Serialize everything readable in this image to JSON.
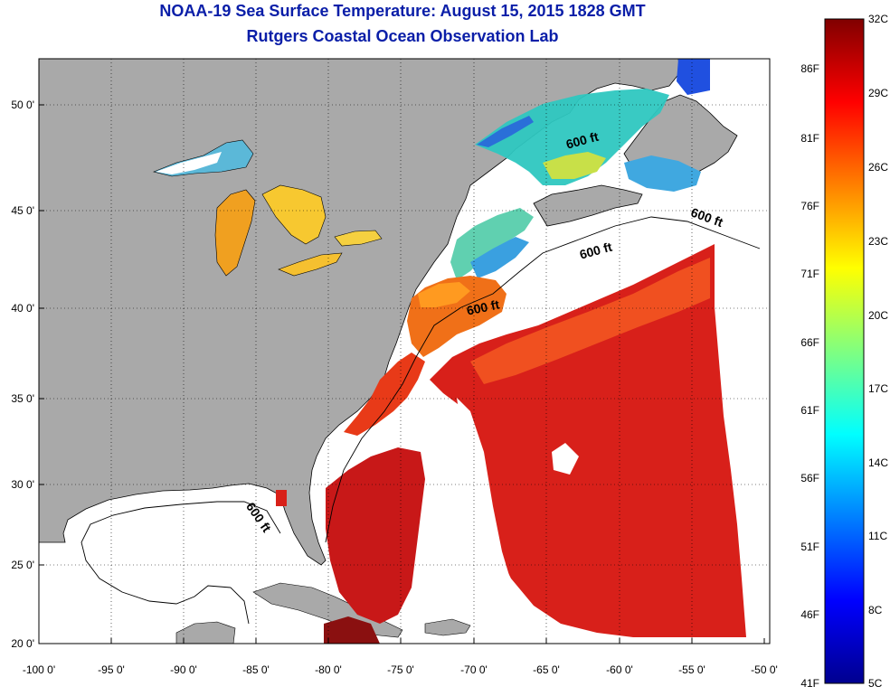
{
  "title": "NOAA-19 Sea Surface Temperature:  August 15, 2015 1828 GMT",
  "subtitle": "Rutgers Coastal Ocean Observation Lab",
  "map": {
    "lon_ticks": [
      "-100 0'",
      "-95 0'",
      "-90 0'",
      "-85 0'",
      "-80 0'",
      "-75 0'",
      "-70 0'",
      "-65 0'",
      "-60 0'",
      "-55 0'",
      "-50 0'"
    ],
    "lat_ticks": [
      "50 0'",
      "45 0'",
      "40 0'",
      "35 0'",
      "30 0'",
      "25 0'",
      "20 0'"
    ],
    "contour_label": "600 ft",
    "colors": {
      "land": "#a9a9a9",
      "no_data": "#ffffff"
    }
  },
  "colorbar": {
    "celsius_labels": [
      "32C",
      "29C",
      "26C",
      "23C",
      "20C",
      "17C",
      "14C",
      "11C",
      "8C",
      "5C"
    ],
    "fahrenheit_labels": [
      "86F",
      "81F",
      "76F",
      "71F",
      "66F",
      "61F",
      "56F",
      "51F",
      "46F",
      "41F"
    ],
    "colors": [
      "#800000",
      "#ff0000",
      "#ff8000",
      "#ffff00",
      "#80ff80",
      "#00ffff",
      "#0080ff",
      "#0000ff",
      "#00008f"
    ]
  }
}
